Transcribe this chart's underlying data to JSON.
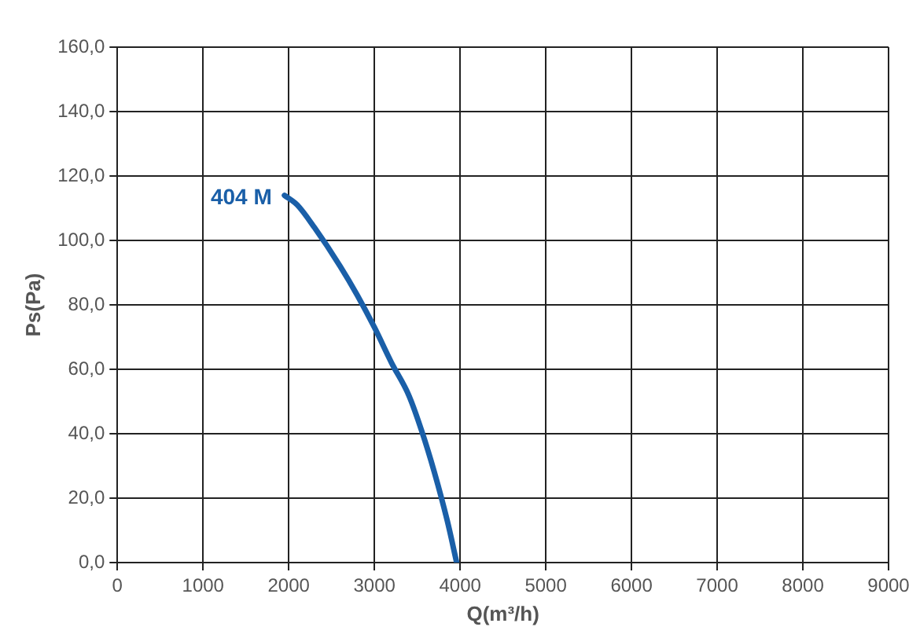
{
  "chart_data": {
    "type": "line",
    "xlabel": "Q(m³/h)",
    "ylabel": "Ps(Pa)",
    "x": [
      1950,
      2100,
      2300,
      2600,
      2800,
      3000,
      3200,
      3400,
      3550,
      3700,
      3850,
      3960
    ],
    "series": [
      {
        "name": "404 M",
        "color": "#1a5fa8",
        "values": [
          114,
          111,
          104,
          92,
          83,
          73,
          62,
          52,
          41,
          28,
          13,
          0
        ]
      }
    ],
    "xlim": [
      0,
      9000
    ],
    "xticks": [
      0,
      1000,
      2000,
      3000,
      4000,
      5000,
      6000,
      7000,
      8000,
      9000
    ],
    "ylim": [
      0,
      160
    ],
    "yticks": [
      {
        "value": 0,
        "label": "0,0"
      },
      {
        "value": 20,
        "label": "20,0"
      },
      {
        "value": 40,
        "label": "40,0"
      },
      {
        "value": 60,
        "label": "60,0"
      },
      {
        "value": 80,
        "label": "80,0"
      },
      {
        "value": 100,
        "label": "100,0"
      },
      {
        "value": 120,
        "label": "120,0"
      },
      {
        "value": 140,
        "label": "140,0"
      },
      {
        "value": 160,
        "label": "160,0"
      }
    ],
    "grid": true,
    "legend": false,
    "marker": "none",
    "line_style": "solid"
  }
}
